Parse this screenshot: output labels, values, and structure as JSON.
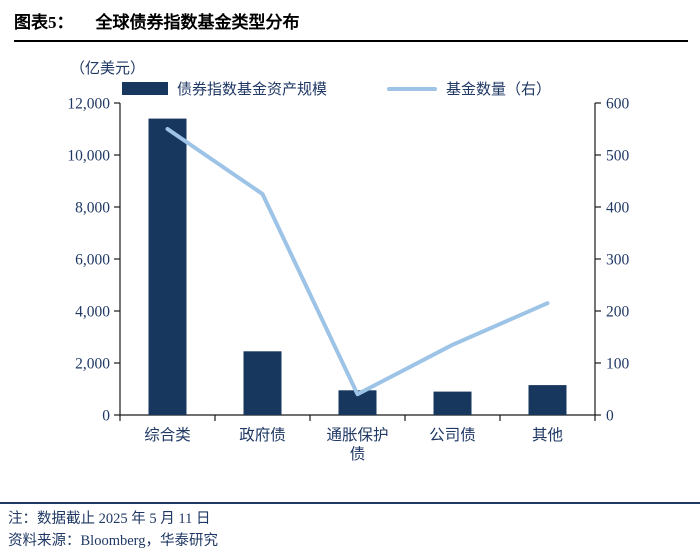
{
  "header": {
    "label": "图表5：",
    "title": "全球债券指数基金类型分布"
  },
  "chart_data": {
    "type": "bar",
    "subtype": "bar-line-combo",
    "categories": [
      "综合类",
      "政府债",
      "通胀保护债",
      "公司债",
      "其他"
    ],
    "series": [
      {
        "name": "债券指数基金资产规模",
        "type": "bar",
        "axis": "left",
        "values": [
          11400,
          2450,
          950,
          900,
          1150
        ],
        "color": "#17375E"
      },
      {
        "name": "基金数量（右）",
        "type": "line",
        "axis": "right",
        "values": [
          550,
          425,
          40,
          135,
          215
        ],
        "color": "#9DC3E6"
      }
    ],
    "left_axis": {
      "label": "（亿美元）",
      "min": 0,
      "max": 12000,
      "step": 2000
    },
    "right_axis": {
      "min": 0,
      "max": 600,
      "step": 100
    },
    "legend_position": "top",
    "grid": false
  },
  "footer": {
    "note": "注：数据截止 2025 年 5 月 11 日",
    "source": "资料来源：Bloomberg，华泰研究"
  }
}
